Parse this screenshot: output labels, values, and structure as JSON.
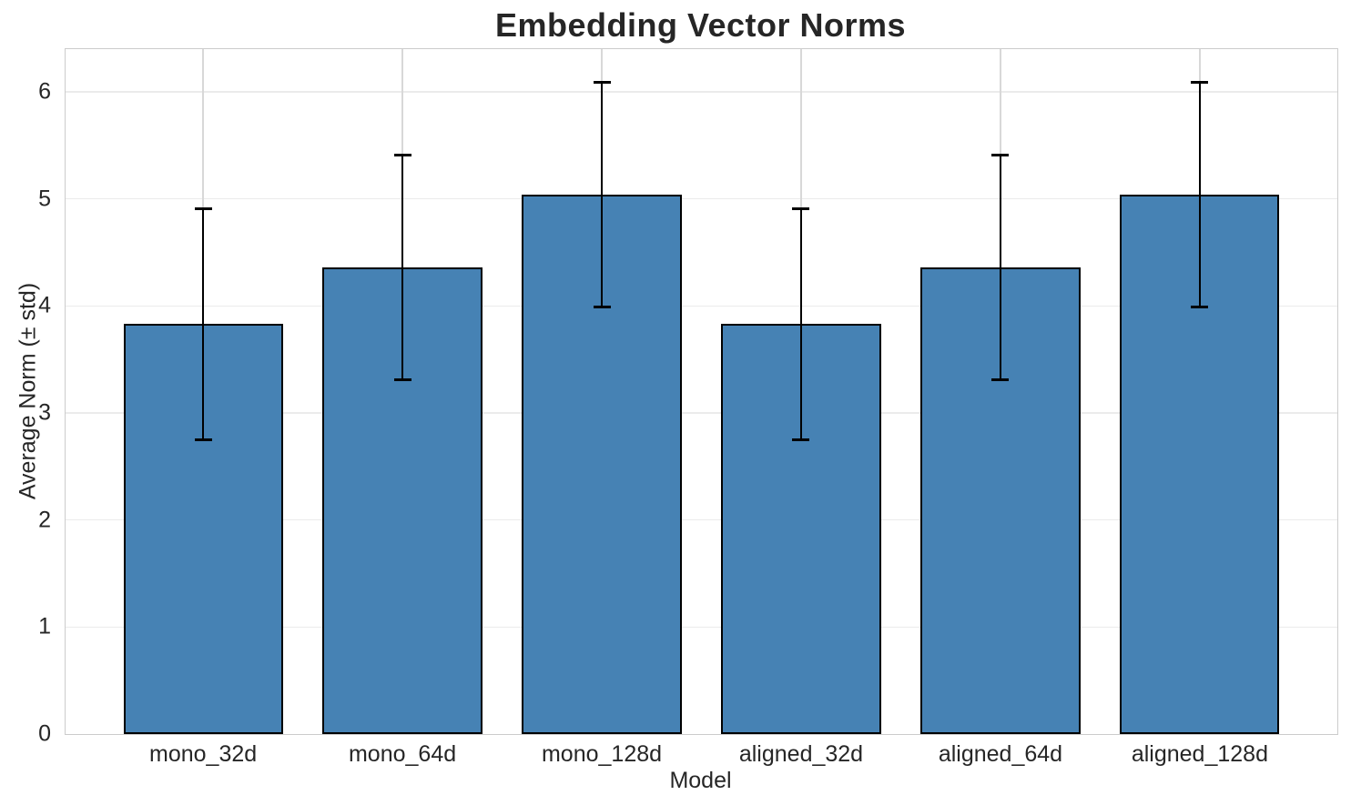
{
  "title": "Embedding Vector Norms",
  "colors": {
    "bar_fill": "#4682B4",
    "bar_edge": "#000000",
    "error_bar": "#000000",
    "grid_horizontal": "#ebebeb",
    "grid_vertical": "#d8d8d8",
    "spine": "#cccccc",
    "text": "#262626",
    "background": "#ffffff"
  },
  "chart_data": {
    "type": "bar",
    "title": "Embedding Vector Norms",
    "xlabel": "Model",
    "ylabel": "Average Norm (± std)",
    "categories": [
      "mono_32d",
      "mono_64d",
      "mono_128d",
      "aligned_32d",
      "aligned_64d",
      "aligned_128d"
    ],
    "series": [
      {
        "name": "Average Norm",
        "values": [
          3.83,
          4.36,
          5.04,
          3.83,
          4.36,
          5.04
        ],
        "errors": [
          1.08,
          1.05,
          1.05,
          1.08,
          1.05,
          1.05
        ]
      }
    ],
    "y_ticks": [
      0,
      1,
      2,
      3,
      4,
      5,
      6
    ],
    "ylim": [
      0,
      6.4
    ],
    "grid": true,
    "error_bars": true,
    "legend": "none"
  }
}
